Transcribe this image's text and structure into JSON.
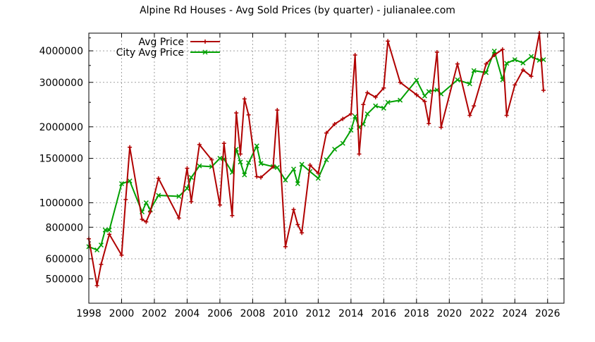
{
  "chart_data": {
    "type": "line",
    "title": "Alpine Rd Houses - Avg Sold Prices (by quarter) - julianalee.com",
    "xlabel": "",
    "ylabel": "",
    "xlim": [
      1998,
      2027
    ],
    "ylim": [
      400000,
      4700000
    ],
    "yscale": "log",
    "grid": true,
    "legend_position": "top-left",
    "x_ticks": [
      1998,
      2000,
      2002,
      2004,
      2006,
      2008,
      2010,
      2012,
      2014,
      2016,
      2018,
      2020,
      2022,
      2024,
      2026
    ],
    "y_ticks": [
      {
        "value": 500000,
        "label": "500000"
      },
      {
        "value": 600000,
        "label": "600000"
      },
      {
        "value": 800000,
        "label": "800000"
      },
      {
        "value": 1000000,
        "label": "1000000"
      },
      {
        "value": 1500000,
        "label": "1500000"
      },
      {
        "value": 2000000,
        "label": "2000000"
      },
      {
        "value": 3000000,
        "label": "3000000"
      },
      {
        "value": 4000000,
        "label": "4000000"
      }
    ],
    "series": [
      {
        "name": "Avg Price",
        "color": "#b00000",
        "marker": "plus",
        "points": [
          [
            1998.0,
            720000
          ],
          [
            1998.5,
            470000
          ],
          [
            1998.75,
            570000
          ],
          [
            1999.25,
            750000
          ],
          [
            2000.0,
            620000
          ],
          [
            2000.25,
            1030000
          ],
          [
            2000.5,
            1660000
          ],
          [
            2001.25,
            860000
          ],
          [
            2001.5,
            840000
          ],
          [
            2001.75,
            920000
          ],
          [
            2002.25,
            1250000
          ],
          [
            2003.5,
            870000
          ],
          [
            2004.0,
            1370000
          ],
          [
            2004.25,
            1010000
          ],
          [
            2004.75,
            1700000
          ],
          [
            2005.5,
            1480000
          ],
          [
            2006.0,
            980000
          ],
          [
            2006.25,
            1720000
          ],
          [
            2006.75,
            890000
          ],
          [
            2007.0,
            2270000
          ],
          [
            2007.25,
            1560000
          ],
          [
            2007.5,
            2580000
          ],
          [
            2007.75,
            2230000
          ],
          [
            2008.25,
            1270000
          ],
          [
            2008.5,
            1260000
          ],
          [
            2009.25,
            1390000
          ],
          [
            2009.5,
            2330000
          ],
          [
            2010.0,
            670000
          ],
          [
            2010.5,
            940000
          ],
          [
            2010.75,
            820000
          ],
          [
            2011.0,
            760000
          ],
          [
            2011.5,
            1410000
          ],
          [
            2012.0,
            1310000
          ],
          [
            2012.5,
            1890000
          ],
          [
            2013.0,
            2050000
          ],
          [
            2013.5,
            2150000
          ],
          [
            2014.0,
            2250000
          ],
          [
            2014.25,
            3850000
          ],
          [
            2014.5,
            1560000
          ],
          [
            2014.75,
            2450000
          ],
          [
            2015.0,
            2730000
          ],
          [
            2015.5,
            2620000
          ],
          [
            2016.0,
            2850000
          ],
          [
            2016.25,
            4370000
          ],
          [
            2017.0,
            3000000
          ],
          [
            2018.0,
            2680000
          ],
          [
            2018.5,
            2520000
          ],
          [
            2018.75,
            2060000
          ],
          [
            2019.25,
            3950000
          ],
          [
            2019.5,
            1990000
          ],
          [
            2020.5,
            3550000
          ],
          [
            2021.25,
            2220000
          ],
          [
            2021.5,
            2420000
          ],
          [
            2022.25,
            3550000
          ],
          [
            2022.75,
            3850000
          ],
          [
            2023.25,
            4050000
          ],
          [
            2023.5,
            2220000
          ],
          [
            2024.0,
            2930000
          ],
          [
            2024.5,
            3360000
          ],
          [
            2025.0,
            3170000
          ],
          [
            2025.5,
            4700000
          ],
          [
            2025.75,
            2790000
          ]
        ]
      },
      {
        "name": "City Avg Price",
        "color": "#00a000",
        "marker": "x",
        "points": [
          [
            1998.0,
            670000
          ],
          [
            1998.5,
            650000
          ],
          [
            1998.75,
            680000
          ],
          [
            1999.0,
            780000
          ],
          [
            1999.25,
            780000
          ],
          [
            2000.0,
            1190000
          ],
          [
            2000.5,
            1220000
          ],
          [
            2001.25,
            920000
          ],
          [
            2001.5,
            1000000
          ],
          [
            2001.75,
            940000
          ],
          [
            2002.25,
            1070000
          ],
          [
            2003.5,
            1060000
          ],
          [
            2004.0,
            1140000
          ],
          [
            2004.25,
            1260000
          ],
          [
            2004.75,
            1400000
          ],
          [
            2005.5,
            1390000
          ],
          [
            2006.0,
            1500000
          ],
          [
            2006.25,
            1490000
          ],
          [
            2006.75,
            1320000
          ],
          [
            2007.0,
            1630000
          ],
          [
            2007.25,
            1450000
          ],
          [
            2007.5,
            1290000
          ],
          [
            2007.75,
            1440000
          ],
          [
            2008.25,
            1680000
          ],
          [
            2008.5,
            1430000
          ],
          [
            2009.25,
            1390000
          ],
          [
            2009.5,
            1380000
          ],
          [
            2010.0,
            1230000
          ],
          [
            2010.5,
            1360000
          ],
          [
            2010.75,
            1190000
          ],
          [
            2011.0,
            1420000
          ],
          [
            2011.5,
            1330000
          ],
          [
            2012.0,
            1250000
          ],
          [
            2012.5,
            1480000
          ],
          [
            2013.0,
            1630000
          ],
          [
            2013.5,
            1720000
          ],
          [
            2014.0,
            1940000
          ],
          [
            2014.25,
            2200000
          ],
          [
            2014.5,
            1990000
          ],
          [
            2014.75,
            2050000
          ],
          [
            2015.0,
            2250000
          ],
          [
            2015.5,
            2420000
          ],
          [
            2016.0,
            2370000
          ],
          [
            2016.25,
            2500000
          ],
          [
            2017.0,
            2550000
          ],
          [
            2018.0,
            3060000
          ],
          [
            2018.5,
            2650000
          ],
          [
            2018.75,
            2760000
          ],
          [
            2019.25,
            2800000
          ],
          [
            2019.5,
            2700000
          ],
          [
            2020.5,
            3070000
          ],
          [
            2021.25,
            2960000
          ],
          [
            2021.5,
            3340000
          ],
          [
            2022.25,
            3280000
          ],
          [
            2022.75,
            3990000
          ],
          [
            2023.25,
            3070000
          ],
          [
            2023.5,
            3570000
          ],
          [
            2024.0,
            3690000
          ],
          [
            2024.5,
            3580000
          ],
          [
            2025.0,
            3800000
          ],
          [
            2025.5,
            3670000
          ],
          [
            2025.75,
            3690000
          ]
        ]
      }
    ]
  }
}
